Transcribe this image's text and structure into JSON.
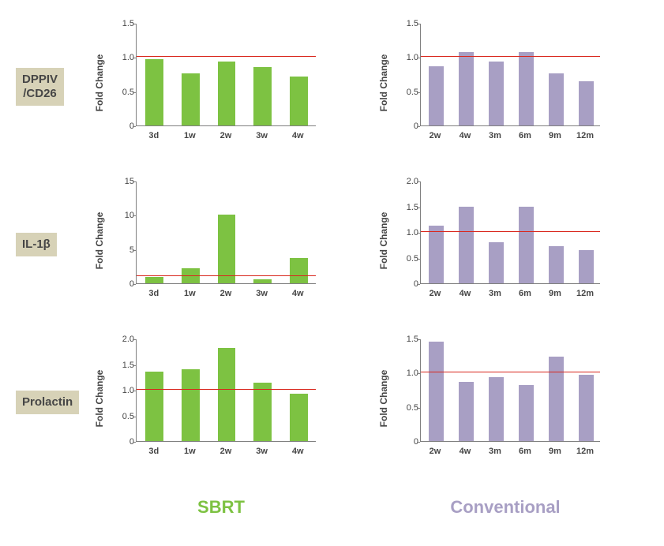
{
  "ylabel": "Fold Change",
  "reference_line": {
    "value": 1,
    "color": "#d9261c"
  },
  "sbrt_color": "#7dc242",
  "conv_color": "#a89fc4",
  "label_bg": "#d7d2b7",
  "axis_color": "#808080",
  "rows": [
    {
      "label": "DPPIV\n/CD26"
    },
    {
      "label": "IL-1β"
    },
    {
      "label": "Prolactin"
    }
  ],
  "col_titles": {
    "sbrt": "SBRT",
    "conv": "Conventional"
  },
  "charts": [
    {
      "key": "dppiv_sbrt",
      "row": 0,
      "col": "sbrt",
      "ylim": [
        0,
        1.5
      ],
      "ytick_step": 0.5,
      "categories": [
        "3d",
        "1w",
        "2w",
        "3w",
        "4w"
      ],
      "values": [
        0.97,
        0.76,
        0.93,
        0.85,
        0.72
      ],
      "bar_color": "#7dc242",
      "ref": 1
    },
    {
      "key": "dppiv_conv",
      "row": 0,
      "col": "conv",
      "ylim": [
        0,
        1.5
      ],
      "ytick_step": 0.5,
      "categories": [
        "2w",
        "4w",
        "3m",
        "6m",
        "9m",
        "12m"
      ],
      "values": [
        0.87,
        1.07,
        0.93,
        1.07,
        0.76,
        0.65
      ],
      "bar_color": "#a89fc4",
      "ref": 1
    },
    {
      "key": "il1b_sbrt",
      "row": 1,
      "col": "sbrt",
      "ylim": [
        0,
        15
      ],
      "ytick_step": 5,
      "categories": [
        "3d",
        "1w",
        "2w",
        "3w",
        "4w"
      ],
      "values": [
        0.9,
        2.2,
        10.0,
        0.6,
        3.7
      ],
      "bar_color": "#7dc242",
      "ref": 1
    },
    {
      "key": "il1b_conv",
      "row": 1,
      "col": "conv",
      "ylim": [
        0,
        2
      ],
      "ytick_step": 0.5,
      "categories": [
        "2w",
        "4w",
        "3m",
        "6m",
        "9m",
        "12m"
      ],
      "values": [
        1.12,
        1.5,
        0.8,
        1.5,
        0.72,
        0.64
      ],
      "bar_color": "#a89fc4",
      "ref": 1
    },
    {
      "key": "prolactin_sbrt",
      "row": 2,
      "col": "sbrt",
      "ylim": [
        0,
        2
      ],
      "ytick_step": 0.5,
      "categories": [
        "3d",
        "1w",
        "2w",
        "3w",
        "4w"
      ],
      "values": [
        1.35,
        1.4,
        1.82,
        1.14,
        0.93
      ],
      "bar_color": "#7dc242",
      "ref": 1
    },
    {
      "key": "prolactin_conv",
      "row": 2,
      "col": "conv",
      "ylim": [
        0,
        1.5
      ],
      "ytick_step": 0.5,
      "categories": [
        "2w",
        "4w",
        "3m",
        "6m",
        "9m",
        "12m"
      ],
      "values": [
        1.45,
        0.87,
        0.93,
        0.82,
        1.23,
        0.97
      ],
      "bar_color": "#a89fc4",
      "ref": 1
    }
  ]
}
